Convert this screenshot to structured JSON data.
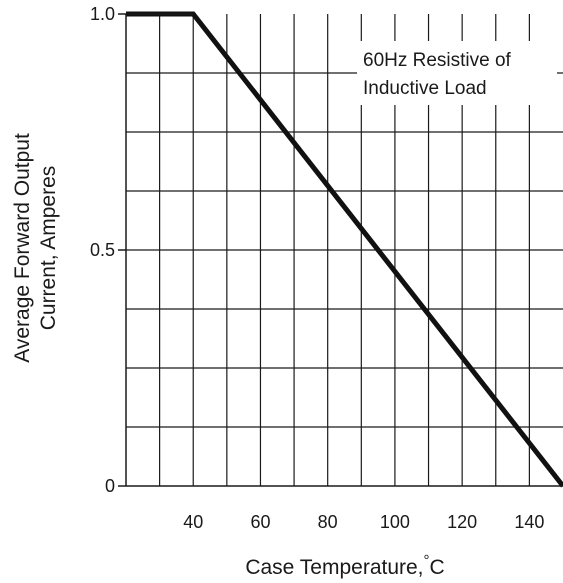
{
  "chart_data": {
    "type": "line",
    "title": "",
    "xlabel": "Case Temperature,",
    "xlabel_unit_degree": "°",
    "xlabel_unit": "C",
    "ylabel_lines": [
      "Average Forward Output",
      "Current, Amperes"
    ],
    "xlim": [
      20,
      150
    ],
    "ylim": [
      0,
      1.0
    ],
    "x_ticks": [
      40,
      60,
      80,
      100,
      120,
      140
    ],
    "x_tick_labels": [
      "40",
      "60",
      "80",
      "100",
      "120",
      "140"
    ],
    "y_ticks": [
      0,
      0.5,
      1.0
    ],
    "y_tick_labels": [
      "0",
      "0.5",
      "1.0"
    ],
    "grid": true,
    "grid_x_step": 10,
    "grid_y_step": 0.125,
    "series": [
      {
        "x": [
          20,
          40,
          150
        ],
        "y": [
          1.0,
          1.0,
          0.0
        ]
      }
    ],
    "annotation": {
      "lines": [
        "60Hz Resistive of",
        "Inductive Load"
      ]
    }
  },
  "colors": {
    "axis": "#1a1a1a",
    "grid": "#1a1a1a",
    "line": "#111111",
    "background": "#ffffff"
  }
}
